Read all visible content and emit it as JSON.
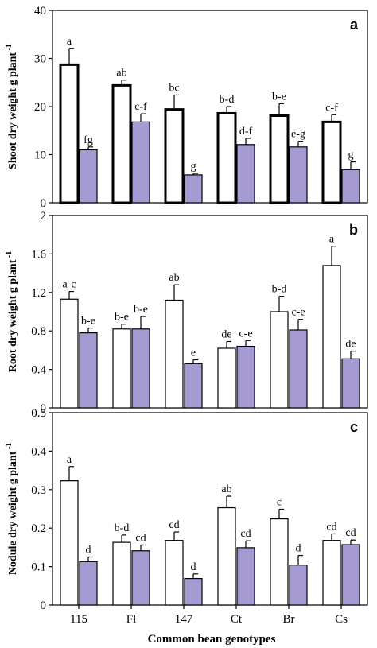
{
  "colors": {
    "control_fill": "#ffffff",
    "treated_fill": "#a59ad1",
    "stroke": "#000000"
  },
  "xlabel": "Common bean genotypes",
  "chart_data": [
    {
      "type": "bar",
      "panel_label": "a",
      "ylabel": "Shoot dry weight g plant",
      "ylabel_sup": "-1",
      "categories": [
        "115",
        "Fl",
        "147",
        "Ct",
        "Br",
        "Cs"
      ],
      "ylim": [
        0,
        40
      ],
      "yticks": [
        "0",
        "10",
        "20",
        "30",
        "40"
      ],
      "grid": false,
      "series": [
        {
          "values": [
            28.7,
            24.4,
            19.4,
            18.6,
            18.1,
            16.8
          ],
          "errors": [
            3.4,
            1.1,
            3.0,
            1.4,
            2.5,
            1.5
          ],
          "letters": [
            "a",
            "ab",
            "bc",
            "b-d",
            "b-e",
            "c-f"
          ]
        },
        {
          "values": [
            11.0,
            16.8,
            5.8,
            12.1,
            11.6,
            6.9
          ],
          "errors": [
            0.6,
            1.7,
            0.3,
            1.3,
            1.2,
            1.6
          ],
          "letters": [
            "fg",
            "c-f",
            "g",
            "d-f",
            "e-g",
            "g"
          ]
        }
      ]
    },
    {
      "type": "bar",
      "panel_label": "b",
      "ylabel": "Root dry weight g plant",
      "ylabel_sup": "-1",
      "categories": [
        "115",
        "Fl",
        "147",
        "Ct",
        "Br",
        "Cs"
      ],
      "ylim": [
        0,
        2
      ],
      "yticks": [
        "0",
        "0.4",
        "0.8",
        "1.2",
        "1.6",
        "2"
      ],
      "grid": false,
      "series": [
        {
          "values": [
            1.13,
            0.82,
            1.12,
            0.62,
            1.0,
            1.48
          ],
          "errors": [
            0.08,
            0.05,
            0.16,
            0.07,
            0.16,
            0.2
          ],
          "letters": [
            "a-c",
            "b-e",
            "ab",
            "de",
            "b-d",
            "a"
          ]
        },
        {
          "values": [
            0.78,
            0.82,
            0.46,
            0.64,
            0.81,
            0.51
          ],
          "errors": [
            0.05,
            0.13,
            0.04,
            0.06,
            0.11,
            0.08
          ],
          "letters": [
            "b-e",
            "b-e",
            "e",
            "c-e",
            "c-e",
            "de"
          ]
        }
      ]
    },
    {
      "type": "bar",
      "panel_label": "c",
      "ylabel": "Nodule dry weight g plant",
      "ylabel_sup": "-1",
      "categories": [
        "115",
        "Fl",
        "147",
        "Ct",
        "Br",
        "Cs"
      ],
      "ylim": [
        0,
        0.5
      ],
      "yticks": [
        "0",
        "0.1",
        "0.2",
        "0.3",
        "0.4",
        "0.5"
      ],
      "grid": false,
      "series": [
        {
          "values": [
            0.323,
            0.163,
            0.168,
            0.253,
            0.224,
            0.168
          ],
          "errors": [
            0.037,
            0.019,
            0.022,
            0.03,
            0.025,
            0.017
          ],
          "letters": [
            "a",
            "b-d",
            "cd",
            "ab",
            "c",
            "cd"
          ]
        },
        {
          "values": [
            0.113,
            0.141,
            0.069,
            0.149,
            0.104,
            0.157
          ],
          "errors": [
            0.012,
            0.015,
            0.012,
            0.018,
            0.025,
            0.012
          ],
          "letters": [
            "d",
            "cd",
            "d",
            "cd",
            "d",
            "cd"
          ]
        }
      ]
    }
  ]
}
